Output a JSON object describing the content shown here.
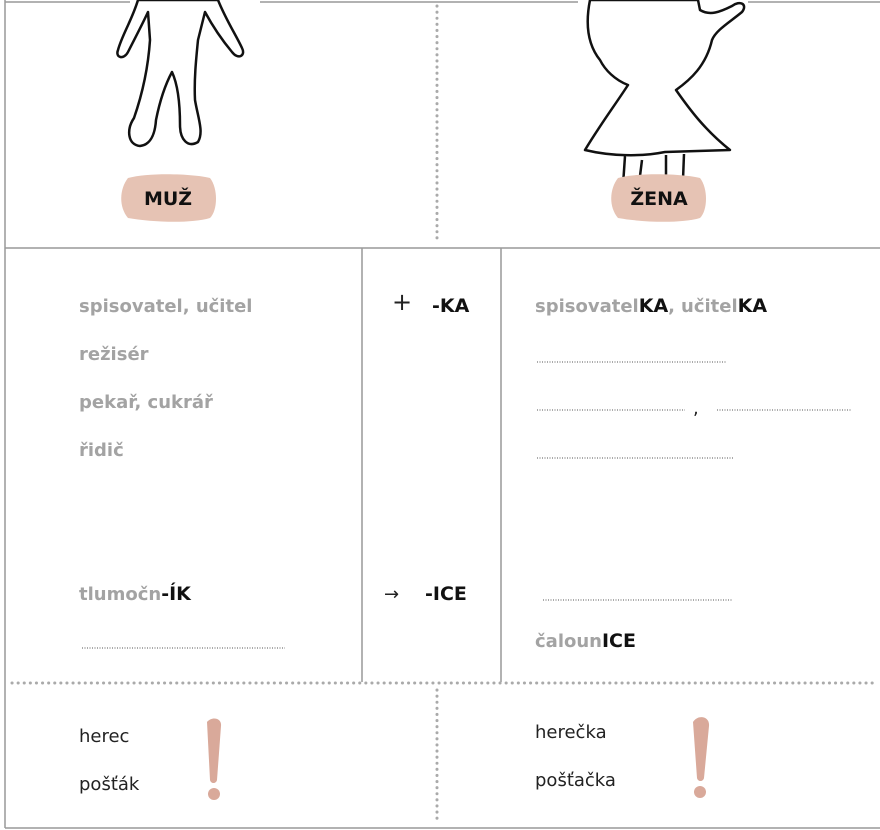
{
  "top": {
    "male": {
      "label": "MUŽ"
    },
    "female": {
      "label": "ŽENA"
    }
  },
  "left": {
    "words": [
      "spisovatel, učitel",
      "režisér",
      "pekař, cukrář",
      "řidič"
    ],
    "example": {
      "stem": "tlumočn",
      "suffix": "-ÍK"
    }
  },
  "middle": {
    "rule1": {
      "symbol": "+",
      "suffix": "-KA"
    },
    "rule2": {
      "symbol": "→",
      "suffix": "-ICE"
    }
  },
  "right": {
    "example1": {
      "stem1": "spisovatel",
      "suffix1": "KA",
      "separator": ",",
      "stem2": "učitel",
      "suffix2": "KA"
    },
    "blank_separator": ",",
    "example2": {
      "stem": "čaloun",
      "suffix": "ICE"
    }
  },
  "bottom": {
    "left": [
      "herec",
      "pošťák"
    ],
    "right": [
      "herečka",
      "pošťačka"
    ]
  }
}
